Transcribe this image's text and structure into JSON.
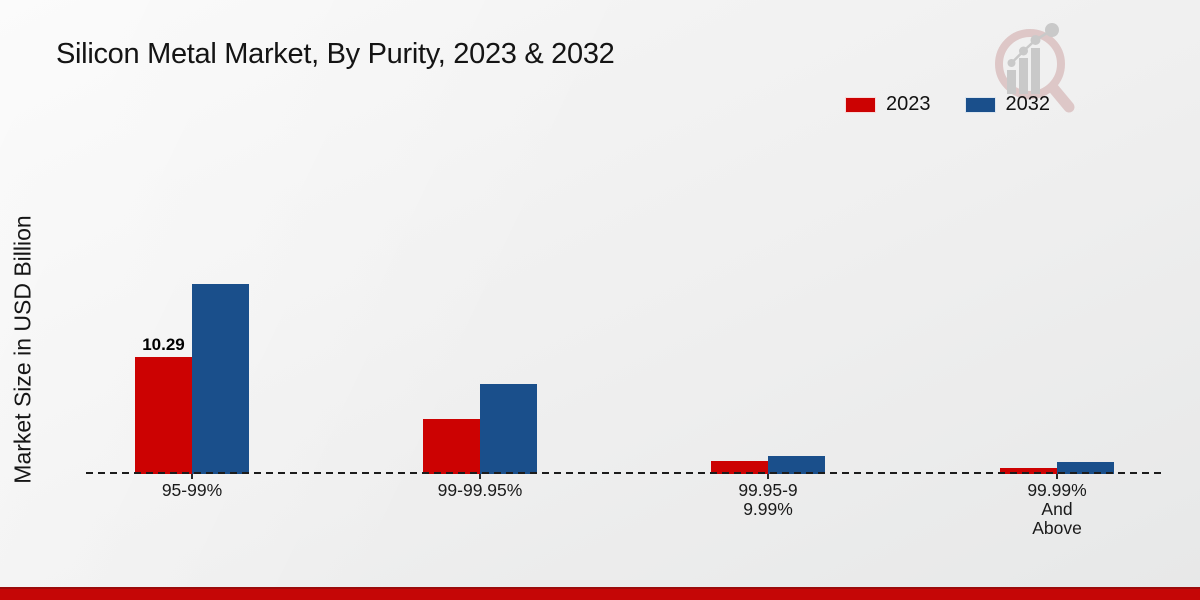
{
  "chart_data": {
    "type": "bar",
    "title": "Silicon Metal Market, By Purity, 2023 & 2032",
    "xlabel": "",
    "ylabel": "Market Size in USD Billion",
    "categories": [
      "95-99%",
      "99-99.95%",
      "99.95-99.99%",
      "99.99% And Above"
    ],
    "category_label_lines": [
      [
        "95-99%"
      ],
      [
        "99-99.95%"
      ],
      [
        "99.95-9",
        "9.99%"
      ],
      [
        "99.99%",
        "And",
        "Above"
      ]
    ],
    "series": [
      {
        "name": "2023",
        "color": "#cc0202",
        "values": [
          10.29,
          4.8,
          1.15,
          0.55
        ]
      },
      {
        "name": "2032",
        "color": "#1a4f8b",
        "values": [
          16.7,
          7.9,
          1.6,
          1.05
        ]
      }
    ],
    "bar_labels": [
      {
        "series": "2023",
        "category_index": 0,
        "text": "10.29"
      }
    ],
    "legend_position": "top-right",
    "grid": false,
    "baseline_style": "dashed-black",
    "y_axis_ticks_visible": false
  },
  "footer": {
    "accent_color": "#c50606",
    "accent_edge_color": "#9c0b0b"
  },
  "logo": {
    "ring_color": "#dcc3c3",
    "element_color": "#c5c5c5"
  }
}
